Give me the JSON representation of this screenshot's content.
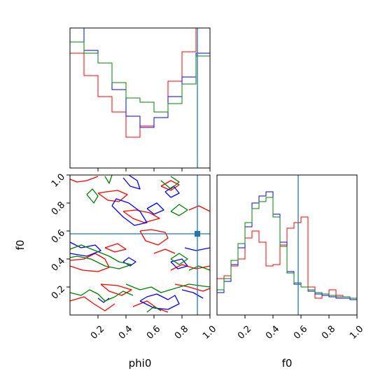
{
  "chart_data": {
    "type": "corner",
    "parameters": [
      "phi0",
      "f0"
    ],
    "truth": {
      "phi0": 0.91,
      "f0": 0.58,
      "color": "#1f77b4"
    },
    "colors": {
      "red": "#ff0000",
      "blue": "#0000ff",
      "green": "#008000"
    },
    "axes": {
      "phi0": {
        "range": [
          0.0,
          1.0
        ],
        "ticks": [
          0.2,
          0.4,
          0.6,
          0.8,
          1.0
        ],
        "tick_labels": [
          "0.2",
          "0.4",
          "0.6",
          "0.8",
          "1.0"
        ],
        "xlabel": "phi0"
      },
      "f0": {
        "range": [
          0.0,
          1.0
        ],
        "ticks": [
          0.2,
          0.4,
          0.6,
          0.8,
          1.0
        ],
        "tick_labels": [
          "0.2",
          "0.4",
          "0.6",
          "0.8",
          "1.0"
        ],
        "ylabel": "f0",
        "xlabel": "f0"
      }
    },
    "hist_phi0": {
      "bin_edges": [
        0.0,
        0.05,
        0.1,
        0.15,
        0.2,
        0.25,
        0.3,
        0.35,
        0.4,
        0.45,
        0.5,
        0.55,
        0.6,
        0.65,
        0.7,
        0.75,
        0.8,
        0.85,
        0.9,
        0.95,
        1.0
      ],
      "y_max": 1.0,
      "series": [
        {
          "color": "red",
          "heights": [
            0.82,
            0.82,
            0.66,
            0.66,
            0.51,
            0.51,
            0.4,
            0.4,
            0.22,
            0.22,
            0.3,
            0.3,
            0.36,
            0.36,
            0.62,
            0.62,
            0.83,
            0.83,
            1.05,
            1.05
          ]
        },
        {
          "color": "blue",
          "heights": [
            1.05,
            1.05,
            0.84,
            0.84,
            0.75,
            0.75,
            0.56,
            0.56,
            0.37,
            0.37,
            0.29,
            0.29,
            0.36,
            0.36,
            0.51,
            0.51,
            0.65,
            0.65,
            0.82,
            0.82
          ]
        },
        {
          "color": "green",
          "heights": [
            0.9,
            0.9,
            0.82,
            0.82,
            0.75,
            0.75,
            0.61,
            0.61,
            0.5,
            0.5,
            0.47,
            0.47,
            0.4,
            0.4,
            0.46,
            0.46,
            0.6,
            0.6,
            0.8,
            0.8
          ]
        }
      ]
    },
    "hist_f0": {
      "bin_edges": [
        0.0,
        0.05,
        0.1,
        0.15,
        0.2,
        0.25,
        0.3,
        0.35,
        0.4,
        0.45,
        0.5,
        0.55,
        0.6,
        0.65,
        0.7,
        0.75,
        0.8,
        0.85,
        0.9,
        0.95,
        1.0
      ],
      "y_max": 1.0,
      "series": [
        {
          "color": "red",
          "heights": [
            0.26,
            0.28,
            0.35,
            0.4,
            0.55,
            0.6,
            0.52,
            0.35,
            0.36,
            0.5,
            0.62,
            0.66,
            0.7,
            0.2,
            0.12,
            0.15,
            0.18,
            0.14,
            0.13,
            0.11
          ]
        },
        {
          "color": "blue",
          "heights": [
            0.16,
            0.24,
            0.36,
            0.48,
            0.63,
            0.8,
            0.85,
            0.88,
            0.72,
            0.52,
            0.31,
            0.22,
            0.2,
            0.17,
            0.15,
            0.14,
            0.13,
            0.12,
            0.12,
            0.11
          ]
        },
        {
          "color": "green",
          "heights": [
            0.18,
            0.26,
            0.39,
            0.51,
            0.66,
            0.76,
            0.81,
            0.84,
            0.7,
            0.49,
            0.3,
            0.23,
            0.2,
            0.18,
            0.16,
            0.15,
            0.14,
            0.13,
            0.13,
            0.12
          ]
        }
      ]
    },
    "contours_2d": [
      {
        "color": "red",
        "paths": [
          [
            [
              0.0,
              0.97
            ],
            [
              0.05,
              0.95
            ],
            [
              0.12,
              0.96
            ],
            [
              0.2,
              0.99
            ]
          ],
          [
            [
              0.2,
              0.87
            ],
            [
              0.27,
              0.82
            ],
            [
              0.35,
              0.81
            ],
            [
              0.41,
              0.86
            ],
            [
              0.34,
              0.89
            ],
            [
              0.26,
              0.88
            ],
            [
              0.2,
              0.87
            ]
          ],
          [
            [
              0.38,
              0.74
            ],
            [
              0.45,
              0.69
            ],
            [
              0.53,
              0.66
            ],
            [
              0.64,
              0.69
            ],
            [
              0.57,
              0.73
            ],
            [
              0.47,
              0.75
            ],
            [
              0.38,
              0.74
            ]
          ],
          [
            [
              0.5,
              0.6
            ],
            [
              0.54,
              0.53
            ],
            [
              0.63,
              0.5
            ],
            [
              0.7,
              0.55
            ],
            [
              0.68,
              0.59
            ],
            [
              0.58,
              0.61
            ],
            [
              0.5,
              0.6
            ]
          ],
          [
            [
              0.0,
              0.39
            ],
            [
              0.1,
              0.4
            ],
            [
              0.18,
              0.44
            ],
            [
              0.25,
              0.4
            ],
            [
              0.28,
              0.34
            ],
            [
              0.2,
              0.31
            ],
            [
              0.09,
              0.32
            ],
            [
              0.0,
              0.35
            ]
          ],
          [
            [
              0.25,
              0.48
            ],
            [
              0.32,
              0.45
            ],
            [
              0.4,
              0.47
            ],
            [
              0.34,
              0.51
            ],
            [
              0.25,
              0.48
            ]
          ],
          [
            [
              0.22,
              0.22
            ],
            [
              0.28,
              0.17
            ],
            [
              0.37,
              0.14
            ],
            [
              0.44,
              0.18
            ],
            [
              0.34,
              0.21
            ],
            [
              0.22,
              0.22
            ]
          ],
          [
            [
              0.0,
              0.1
            ],
            [
              0.1,
              0.13
            ],
            [
              0.17,
              0.08
            ],
            [
              0.25,
              0.03
            ],
            [
              0.32,
              0.08
            ]
          ],
          [
            [
              0.45,
              0.06
            ],
            [
              0.55,
              0.1
            ],
            [
              0.62,
              0.05
            ],
            [
              0.7,
              0.02
            ]
          ],
          [
            [
              0.72,
              0.32
            ],
            [
              0.8,
              0.36
            ],
            [
              0.9,
              0.33
            ],
            [
              1.0,
              0.35
            ]
          ],
          [
            [
              0.75,
              0.22
            ],
            [
              0.85,
              0.2
            ],
            [
              0.95,
              0.17
            ],
            [
              1.0,
              0.19
            ]
          ],
          [
            [
              0.65,
              0.92
            ],
            [
              0.72,
              0.96
            ],
            [
              0.78,
              0.93
            ],
            [
              0.72,
              0.89
            ],
            [
              0.65,
              0.92
            ]
          ],
          [
            [
              0.85,
              0.75
            ],
            [
              0.92,
              0.78
            ],
            [
              1.0,
              0.74
            ]
          ],
          [
            [
              0.6,
              0.44
            ],
            [
              0.68,
              0.47
            ],
            [
              0.75,
              0.44
            ]
          ]
        ]
      },
      {
        "color": "blue",
        "paths": [
          [
            [
              0.38,
              0.98
            ],
            [
              0.43,
              0.92
            ],
            [
              0.5,
              0.9
            ],
            [
              0.48,
              0.96
            ],
            [
              0.42,
              1.0
            ]
          ],
          [
            [
              0.3,
              0.78
            ],
            [
              0.38,
              0.7
            ],
            [
              0.46,
              0.64
            ],
            [
              0.55,
              0.66
            ],
            [
              0.5,
              0.74
            ],
            [
              0.42,
              0.8
            ],
            [
              0.33,
              0.83
            ],
            [
              0.3,
              0.78
            ]
          ],
          [
            [
              0.55,
              0.76
            ],
            [
              0.62,
              0.8
            ],
            [
              0.67,
              0.75
            ],
            [
              0.6,
              0.72
            ],
            [
              0.55,
              0.76
            ]
          ],
          [
            [
              0.68,
              0.88
            ],
            [
              0.74,
              0.92
            ],
            [
              0.78,
              0.87
            ],
            [
              0.72,
              0.84
            ],
            [
              0.68,
              0.88
            ]
          ],
          [
            [
              0.0,
              0.52
            ],
            [
              0.08,
              0.48
            ],
            [
              0.18,
              0.5
            ],
            [
              0.22,
              0.46
            ],
            [
              0.12,
              0.42
            ],
            [
              0.0,
              0.44
            ]
          ],
          [
            [
              0.38,
              0.38
            ],
            [
              0.43,
              0.35
            ],
            [
              0.47,
              0.38
            ],
            [
              0.42,
              0.41
            ],
            [
              0.38,
              0.38
            ]
          ],
          [
            [
              0.5,
              0.1
            ],
            [
              0.55,
              0.13
            ],
            [
              0.62,
              0.15
            ],
            [
              0.7,
              0.11
            ],
            [
              0.75,
              0.14
            ],
            [
              0.78,
              0.08
            ],
            [
              0.7,
              0.04
            ],
            [
              0.6,
              0.05
            ],
            [
              0.5,
              0.1
            ]
          ],
          [
            [
              0.2,
              0.12
            ],
            [
              0.24,
              0.09
            ],
            [
              0.28,
              0.12
            ]
          ],
          [
            [
              0.82,
              0.48
            ],
            [
              0.9,
              0.46
            ],
            [
              1.0,
              0.48
            ]
          ],
          [
            [
              0.72,
              0.38
            ],
            [
              0.8,
              0.4
            ],
            [
              0.84,
              0.35
            ],
            [
              0.77,
              0.33
            ],
            [
              0.72,
              0.38
            ]
          ],
          [
            [
              0.8,
              0.18
            ],
            [
              0.88,
              0.16
            ],
            [
              0.95,
              0.12
            ]
          ]
        ]
      },
      {
        "color": "green",
        "paths": [
          [
            [
              0.25,
              0.99
            ],
            [
              0.28,
              0.94
            ],
            [
              0.3,
              1.0
            ]
          ],
          [
            [
              0.12,
              0.86
            ],
            [
              0.17,
              0.8
            ],
            [
              0.2,
              0.85
            ],
            [
              0.16,
              0.9
            ],
            [
              0.12,
              0.86
            ]
          ],
          [
            [
              0.65,
              0.96
            ],
            [
              0.72,
              0.9
            ],
            [
              0.78,
              0.95
            ],
            [
              0.72,
              0.99
            ]
          ],
          [
            [
              0.72,
              0.74
            ],
            [
              0.78,
              0.79
            ],
            [
              0.84,
              0.75
            ],
            [
              0.78,
              0.71
            ],
            [
              0.72,
              0.74
            ]
          ],
          [
            [
              0.0,
              0.47
            ],
            [
              0.08,
              0.5
            ],
            [
              0.18,
              0.46
            ],
            [
              0.28,
              0.42
            ],
            [
              0.35,
              0.38
            ],
            [
              0.44,
              0.36
            ],
            [
              0.35,
              0.33
            ],
            [
              0.25,
              0.35
            ],
            [
              0.15,
              0.4
            ],
            [
              0.05,
              0.42
            ],
            [
              0.0,
              0.41
            ]
          ],
          [
            [
              0.4,
              0.22
            ],
            [
              0.5,
              0.18
            ],
            [
              0.58,
              0.2
            ],
            [
              0.65,
              0.16
            ],
            [
              0.75,
              0.19
            ],
            [
              0.85,
              0.22
            ],
            [
              1.0,
              0.2
            ]
          ],
          [
            [
              0.0,
              0.16
            ],
            [
              0.08,
              0.14
            ],
            [
              0.14,
              0.18
            ],
            [
              0.2,
              0.15
            ],
            [
              0.25,
              0.1
            ],
            [
              0.32,
              0.13
            ],
            [
              0.38,
              0.17
            ],
            [
              0.45,
              0.14
            ]
          ],
          [
            [
              0.55,
              0.02
            ],
            [
              0.6,
              0.06
            ],
            [
              0.65,
              0.03
            ]
          ],
          [
            [
              0.72,
              0.4
            ],
            [
              0.78,
              0.44
            ],
            [
              0.84,
              0.4
            ],
            [
              0.78,
              0.36
            ],
            [
              0.72,
              0.4
            ]
          ],
          [
            [
              0.85,
              0.32
            ],
            [
              0.92,
              0.35
            ],
            [
              1.0,
              0.32
            ]
          ]
        ]
      }
    ]
  }
}
